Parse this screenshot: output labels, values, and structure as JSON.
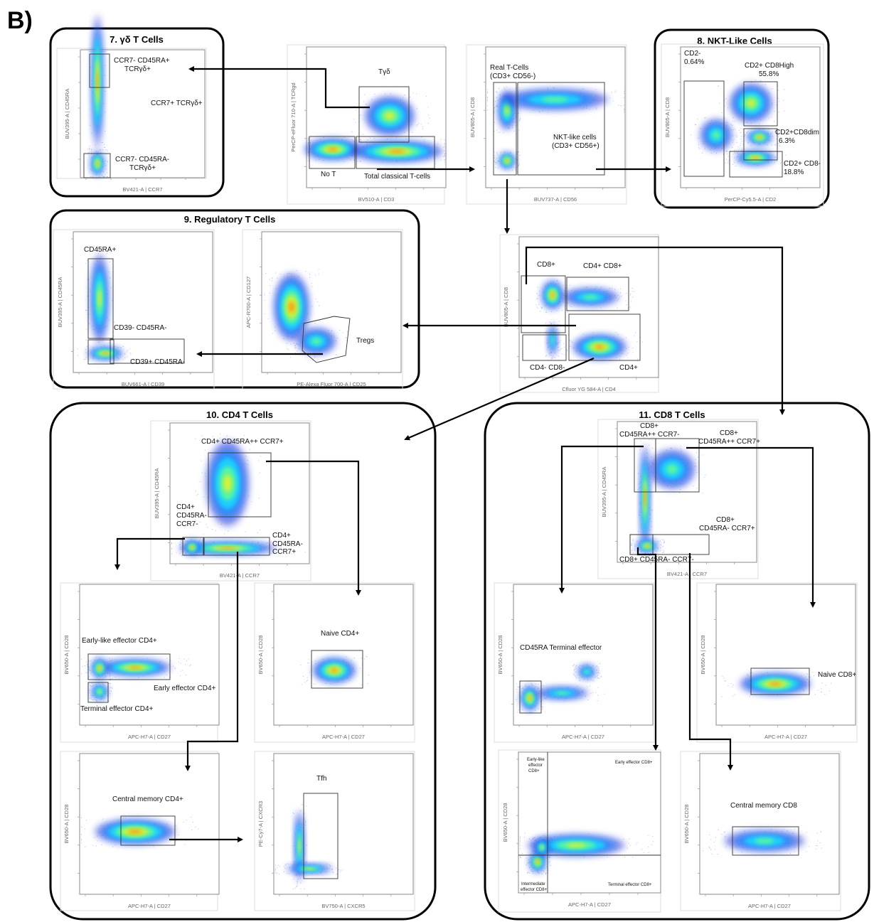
{
  "panel_label": "B)",
  "groups": {
    "gd": "7. γδ T Cells",
    "nkt": "8. NKT-Like Cells",
    "treg": "9. Regulatory T Cells",
    "cd4": "10. CD4 T Cells",
    "cd8": "11. CD8 T Cells"
  },
  "plots": [
    {
      "id": "gd",
      "x": "BV421-A | CCR7",
      "y": "BUV395-A | CD45RA",
      "gates": [
        "CCR7- CD45RA+",
        "TCRγδ+",
        "CCR7+ TCRγδ+",
        "CCR7- CD45RA-",
        "TCRγδ+"
      ]
    },
    {
      "id": "cd3",
      "x": "BV510-A | CD3",
      "y": "PerCP-eFluor 710-A | TCRgd",
      "gates": [
        "Tγδ",
        "No T",
        "Total classical T-cells"
      ]
    },
    {
      "id": "cd56",
      "x": "BUV737-A | CD56",
      "y": "BUV805-A | CD8",
      "gates": [
        "Real T-Cells",
        "(CD3+ CD56-)",
        "NKT-like cells",
        "(CD3+ CD56+)"
      ]
    },
    {
      "id": "nkt",
      "x": "PerCP-Cy5.5-A | CD2",
      "y": "BUV805-A | CD8",
      "gates": [
        "CD2-",
        "0.64%",
        "CD2+ CD8High",
        "55.8%",
        "CD2+CD8dim",
        "6.3%",
        "CD2+ CD8-",
        "18.8%"
      ]
    },
    {
      "id": "treg_a",
      "x": "BUV661-A | CD39",
      "y": "BUV395-A | CD45RA",
      "gates": [
        "CD45RA+",
        "CD39- CD45RA-",
        "CD39+ CD45RA-"
      ]
    },
    {
      "id": "treg_b",
      "x": "PE-Alexa Fluor 700-A | CD25",
      "y": "APC-R700-A | CD127",
      "gates": [
        "Tregs"
      ]
    },
    {
      "id": "cd4cd8",
      "x": "Cfluor YG 584-A | CD4",
      "y": "BUV805-A | CD8",
      "gates": [
        "CD8+",
        "CD4+ CD8+",
        "CD4- CD8-",
        "CD4+"
      ]
    },
    {
      "id": "cd4_main",
      "x": "BV421-A | CCR7",
      "y": "BUV395-A | CD45RA",
      "gates": [
        "CD4+ CD45RA++ CCR7+",
        "CD4+",
        "CD45RA-",
        "CCR7-",
        "CD4+",
        "CD45RA-",
        "CCR7+"
      ]
    },
    {
      "id": "cd4_eff",
      "x": "APC-H7-A | CD27",
      "y": "BV650-A | CD28",
      "gates": [
        "Early-like effector CD4+",
        "Early effector CD4+",
        "Terminal effector CD4+"
      ]
    },
    {
      "id": "cd4_naive",
      "x": "APC-H7-A | CD27",
      "y": "BV650-A | CD28",
      "gates": [
        "Naive CD4+"
      ]
    },
    {
      "id": "cd4_cm",
      "x": "APC-H7-A | CD27",
      "y": "BV650-A | CD28",
      "gates": [
        "Central memory CD4+"
      ]
    },
    {
      "id": "tfh",
      "x": "BV750-A | CXCR5",
      "y": "PE-Cy7-A | CXCR3",
      "gates": [
        "Tfh"
      ]
    },
    {
      "id": "cd8_main",
      "x": "BV421-A | CCR7",
      "y": "BUV395-A | CD45RA",
      "gates": [
        "CD8+",
        "CD45RA++ CCR7-",
        "CD8+",
        "CD45RA++ CCR7+",
        "CD8+",
        "CD45RA- CCR7+",
        "CD8+ CD45RA- CCR7-"
      ]
    },
    {
      "id": "cd8_temra",
      "x": "APC-H7-A | CD27",
      "y": "BV650-A | CD28",
      "gates": [
        "CD45RA Terminal effector"
      ]
    },
    {
      "id": "cd8_naive",
      "x": "APC-H7-A | CD27",
      "y": "BV650-A | CD28",
      "gates": [
        "Naive CD8+"
      ]
    },
    {
      "id": "cd8_eff",
      "x": "APC-H7-A | CD27",
      "y": "BV650-A | CD28",
      "gates": [
        "Early-like",
        "effector",
        "CD8+",
        "Early effector CD8+",
        "Intermediate",
        "effector CD8+",
        "Terminal effector CD8+"
      ]
    },
    {
      "id": "cd8_cm",
      "x": "APC-H7-A | CD27",
      "y": "BV650-A | CD28",
      "gates": [
        "Central memory CD8"
      ]
    }
  ]
}
